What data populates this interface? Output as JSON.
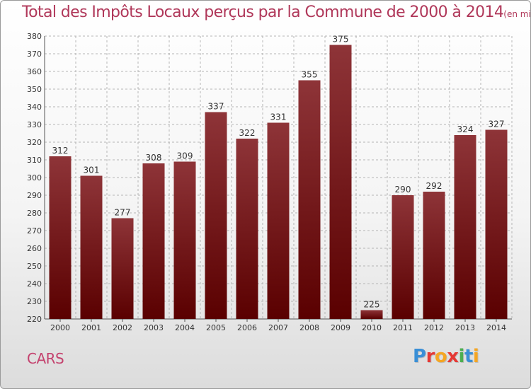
{
  "title": {
    "main": "Total des Impôts Locaux perçus par la Commune de 2000 à 2014",
    "unit": "(en milliers d'€)"
  },
  "commune": "CARS",
  "logo": {
    "letters": [
      {
        "char": "P",
        "color": "#3a8fd6"
      },
      {
        "char": "r",
        "color": "#e53935"
      },
      {
        "char": "o",
        "color": "#f5a623"
      },
      {
        "char": "x",
        "color": "#e53935"
      },
      {
        "char": "i",
        "color": "#4caf50"
      },
      {
        "char": "t",
        "color": "#3a8fd6"
      },
      {
        "char": "i",
        "color": "#f5a623"
      }
    ]
  },
  "colors": {
    "bar_top": "#8e3438",
    "bar_bottom": "#5a0000",
    "grid": "#b5b5b5",
    "axis_text": "#333333"
  },
  "chart_data": {
    "type": "bar",
    "title": "Total des Impôts Locaux perçus par la Commune de 2000 à 2014",
    "xlabel": "",
    "ylabel": "",
    "categories": [
      "2000",
      "2001",
      "2002",
      "2003",
      "2004",
      "2005",
      "2006",
      "2007",
      "2008",
      "2009",
      "2010",
      "2011",
      "2012",
      "2013",
      "2014"
    ],
    "values": [
      312,
      301,
      277,
      308,
      309,
      337,
      322,
      331,
      355,
      375,
      225,
      290,
      292,
      324,
      327
    ],
    "ylim": [
      220,
      380
    ],
    "yticks": [
      220,
      230,
      240,
      250,
      260,
      270,
      280,
      290,
      300,
      310,
      320,
      330,
      340,
      350,
      360,
      370,
      380
    ],
    "grid": true
  }
}
